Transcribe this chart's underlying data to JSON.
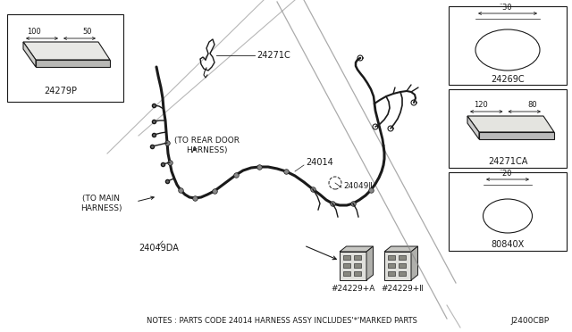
{
  "bg_color": "#ffffff",
  "line_color": "#1a1a1a",
  "gray_color": "#888888",
  "light_gray": "#cccccc",
  "title_note": "NOTES : PARTS CODE 24014 HARNESS ASSY INCLUDES'*'MARKED PARTS",
  "diagram_id": "J2400CBP",
  "figsize": [
    6.4,
    3.72
  ],
  "dpi": 100,
  "parts": {
    "p24279P": "24279P",
    "p24271C": "24271C",
    "p24014": "24014",
    "p240493": "24049Ⅱ",
    "p24049DA": "24049DA",
    "p24229A": "#24229+A",
    "p24229B": "#24229+Ⅱ",
    "p24269C": "24269C",
    "p24271CA": "24271CA",
    "p80840X": "80840X",
    "dim_100": "100",
    "dim_50": "50",
    "dim_30": "̈30",
    "dim_120": "120",
    "dim_80": "80",
    "dim_20": "̈20",
    "label_rear": "(TO REAR DOOR\nHARNESS)",
    "label_main": "(TO MAIN\nHARNESS)"
  }
}
